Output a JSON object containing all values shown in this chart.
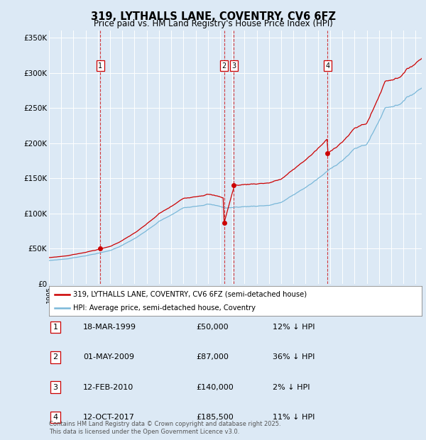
{
  "title": "319, LYTHALLS LANE, COVENTRY, CV6 6FZ",
  "subtitle": "Price paid vs. HM Land Registry's House Price Index (HPI)",
  "background_color": "#dce9f5",
  "plot_bg_color": "#dce9f5",
  "grid_color": "#ffffff",
  "hpi_color": "#7ab8d9",
  "price_color": "#cc0000",
  "ylim": [
    0,
    360000
  ],
  "yticks": [
    0,
    50000,
    100000,
    150000,
    200000,
    250000,
    300000,
    350000
  ],
  "ytick_labels": [
    "£0",
    "£50K",
    "£100K",
    "£150K",
    "£200K",
    "£250K",
    "£300K",
    "£350K"
  ],
  "xlim_start": 1995.0,
  "xlim_end": 2025.5,
  "transactions": [
    {
      "label": "1",
      "date_num": 1999.21,
      "price": 50000,
      "date_str": "18-MAR-1999",
      "pct": "12%"
    },
    {
      "label": "2",
      "date_num": 2009.33,
      "price": 87000,
      "date_str": "01-MAY-2009",
      "pct": "36%"
    },
    {
      "label": "3",
      "date_num": 2010.12,
      "price": 140000,
      "date_str": "12-FEB-2010",
      "pct": "2%"
    },
    {
      "label": "4",
      "date_num": 2017.79,
      "price": 185500,
      "date_str": "12-OCT-2017",
      "pct": "11%"
    }
  ],
  "legend_price_label": "319, LYTHALLS LANE, COVENTRY, CV6 6FZ (semi-detached house)",
  "legend_hpi_label": "HPI: Average price, semi-detached house, Coventry",
  "table_rows": [
    [
      "1",
      "18-MAR-1999",
      "£50,000",
      "12% ↓ HPI"
    ],
    [
      "2",
      "01-MAY-2009",
      "£87,000",
      "36% ↓ HPI"
    ],
    [
      "3",
      "12-FEB-2010",
      "£140,000",
      "2% ↓ HPI"
    ],
    [
      "4",
      "12-OCT-2017",
      "£185,500",
      "11% ↓ HPI"
    ]
  ],
  "footer": "Contains HM Land Registry data © Crown copyright and database right 2025.\nThis data is licensed under the Open Government Licence v3.0."
}
